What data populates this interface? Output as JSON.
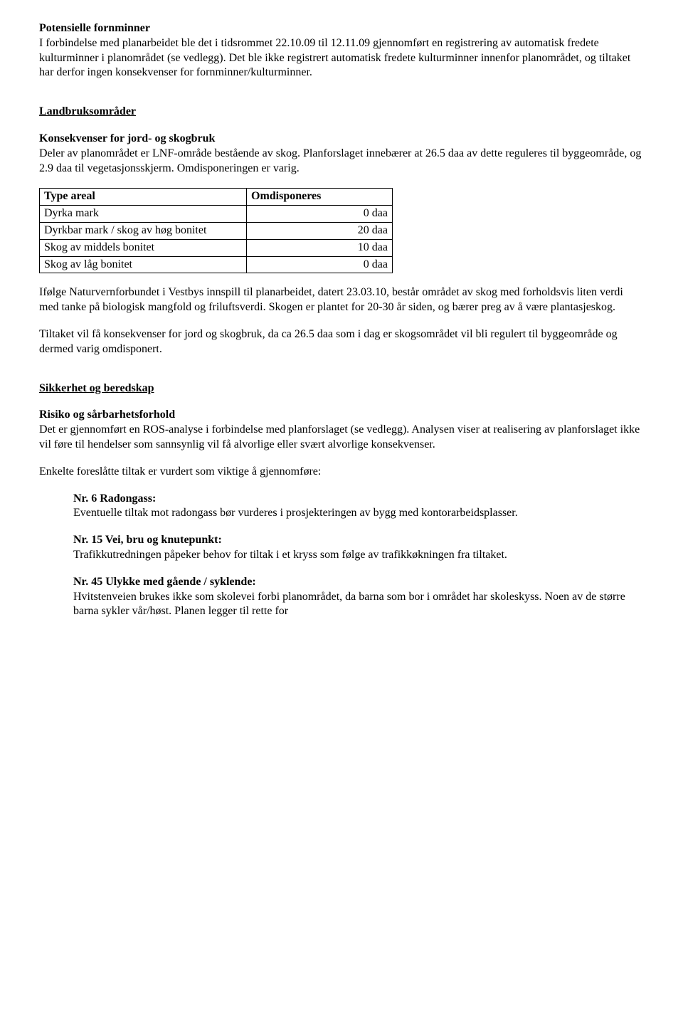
{
  "s1": {
    "h": "Potensielle fornminner",
    "p": "I forbindelse med planarbeidet ble det i tidsrommet 22.10.09 til 12.11.09 gjennomført en registrering av automatisk fredete kulturminner i planområdet (se vedlegg). Det ble ikke registrert automatisk fredete kulturminner innenfor planområdet, og tiltaket har derfor ingen konsekvenser for fornminner/kulturminner."
  },
  "s2": {
    "h": "Landbruksområder",
    "sub": "Konsekvenser for jord- og skogbruk",
    "p": "Deler av planområdet er LNF-område bestående av skog. Planforslaget innebærer at 26.5 daa av dette reguleres til byggeområde, og 2.9 daa til vegetasjonsskjerm. Omdisponeringen er varig."
  },
  "table": {
    "hdr1": "Type areal",
    "hdr2": "Omdisponeres",
    "rows": [
      [
        "Dyrka mark",
        "0 daa"
      ],
      [
        "Dyrkbar mark / skog av høg bonitet",
        "20 daa"
      ],
      [
        "Skog av middels bonitet",
        "10 daa"
      ],
      [
        "Skog av låg bonitet",
        "0 daa"
      ]
    ]
  },
  "s3": {
    "p1": "Ifølge Naturvernforbundet i Vestbys innspill til planarbeidet, datert 23.03.10, består området av skog med forholdsvis liten verdi med tanke på biologisk mangfold og friluftsverdi. Skogen er plantet for 20-30 år siden, og bærer preg av å være plantasjeskog.",
    "p2": "Tiltaket vil få konsekvenser for jord og skogbruk, da ca 26.5 daa som i dag er skogsområdet vil bli regulert til byggeområde og dermed varig omdisponert."
  },
  "s4": {
    "h": "Sikkerhet og beredskap",
    "sub": "Risiko og sårbarhetsforhold",
    "p1": "Det er gjennomført en ROS-analyse i forbindelse med planforslaget (se vedlegg). Analysen viser at realisering av planforslaget ikke vil føre til hendelser som sannsynlig vil få alvorlige eller svært alvorlige konsekvenser.",
    "p2": "Enkelte foreslåtte tiltak er vurdert som viktige å gjennomføre:"
  },
  "items": {
    "i1h": "Nr. 6 Radongass:",
    "i1p": "Eventuelle tiltak mot radongass bør vurderes i prosjekteringen av bygg med kontorarbeidsplasser.",
    "i2h": "Nr. 15 Vei, bru og knutepunkt:",
    "i2p": "Trafikkutredningen påpeker behov for tiltak i et kryss som følge av trafikkøkningen fra tiltaket.",
    "i3h": "Nr. 45 Ulykke med gående / syklende:",
    "i3p": "Hvitstenveien brukes ikke som skolevei forbi planområdet, da barna som bor i området har skoleskyss. Noen av de større barna sykler vår/høst. Planen legger til rette for"
  }
}
